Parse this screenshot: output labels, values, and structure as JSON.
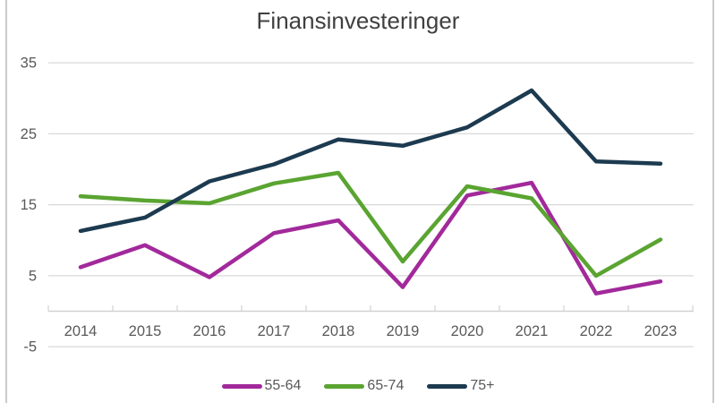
{
  "chart_data": {
    "type": "line",
    "title": "Finansinvesteringer",
    "categories": [
      "2014",
      "2015",
      "2016",
      "2017",
      "2018",
      "2019",
      "2020",
      "2021",
      "2022",
      "2023"
    ],
    "series": [
      {
        "name": "55-64",
        "color": "#a2299b",
        "values": [
          6.2,
          9.3,
          4.8,
          11.0,
          12.8,
          3.4,
          16.3,
          18.1,
          2.5,
          4.2
        ]
      },
      {
        "name": "65-74",
        "color": "#5aa431",
        "values": [
          16.2,
          15.6,
          15.2,
          18.0,
          19.5,
          7.0,
          17.6,
          15.9,
          5.0,
          10.1
        ]
      },
      {
        "name": "75+",
        "color": "#1c3a50",
        "values": [
          11.3,
          13.2,
          18.3,
          20.7,
          24.2,
          23.3,
          25.9,
          31.1,
          21.1,
          20.8
        ]
      }
    ],
    "xlabel": "",
    "ylabel": "",
    "ylim": [
      -5,
      35
    ],
    "yticks": [
      35,
      25,
      15,
      5,
      -5
    ],
    "grid": true,
    "legend_position": "bottom"
  },
  "styles": {
    "title_color": "#404040",
    "tick_label_color": "#595959",
    "grid_color": "#d9d9d9",
    "axis_color": "#d2d2d2",
    "window_border_color": "#cbcbcb",
    "background": "#ffffff"
  }
}
